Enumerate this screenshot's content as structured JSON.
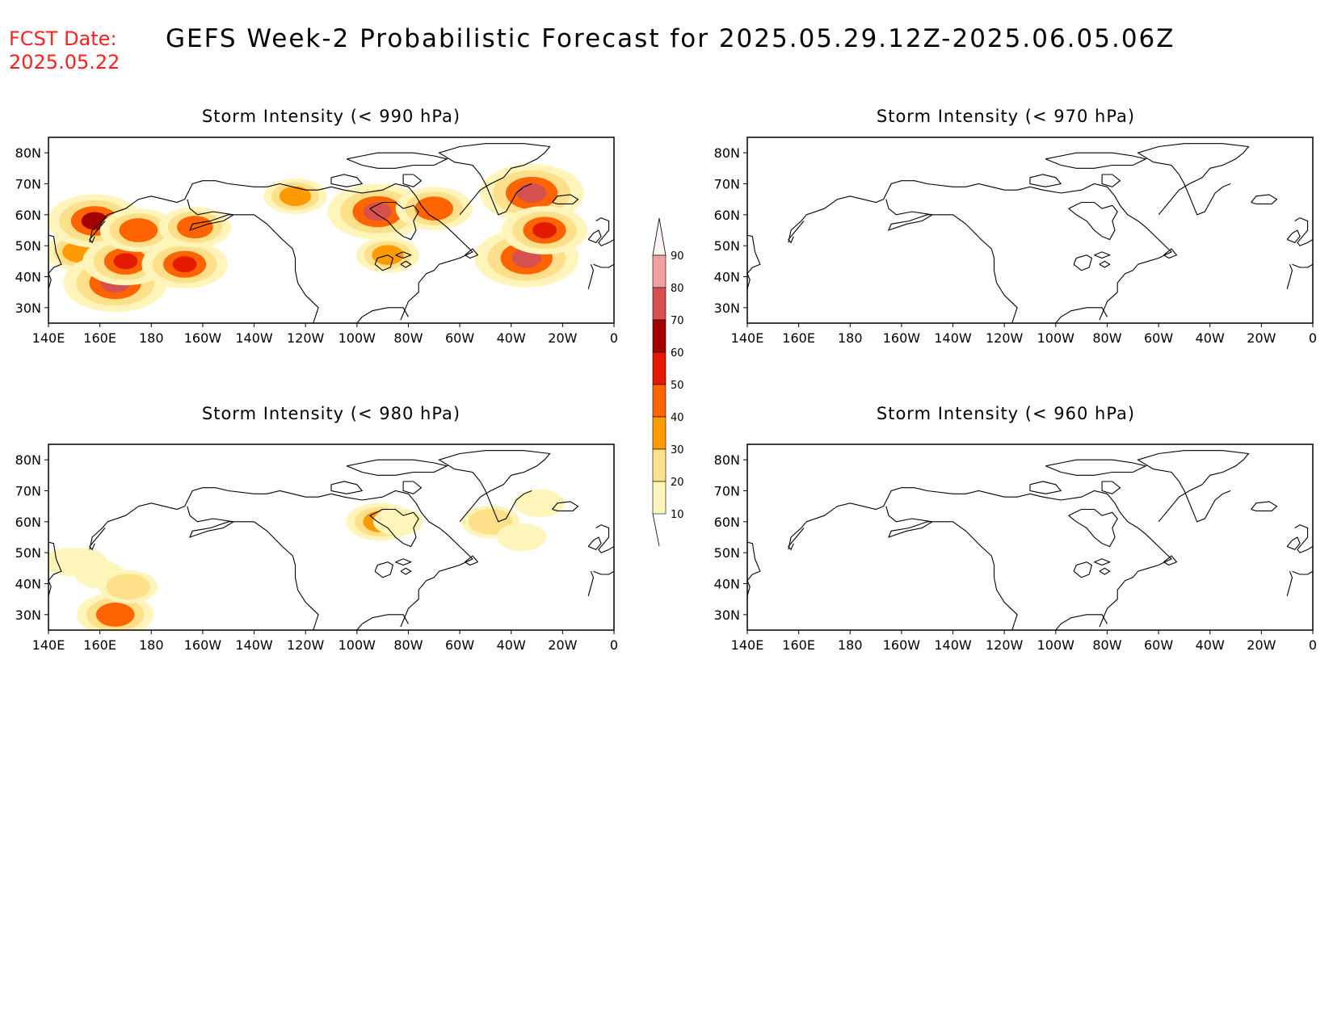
{
  "header": {
    "fcst_label": "FCST Date:",
    "fcst_date": "2025.05.22",
    "title": "GEFS Week-2 Probabilistic Forecast for 2025.05.29.12Z-2025.06.05.06Z"
  },
  "axes": {
    "x_ticks": [
      "140E",
      "160E",
      "180",
      "160W",
      "140W",
      "120W",
      "100W",
      "80W",
      "60W",
      "40W",
      "20W",
      "0"
    ],
    "y_ticks": [
      "80N",
      "70N",
      "60N",
      "50N",
      "40N",
      "30N"
    ],
    "lon_range_deg_east": [
      140,
      360
    ],
    "lat_range": [
      25,
      85
    ]
  },
  "chart_data": [
    {
      "type": "heatmap",
      "panel": "top-left",
      "title": "Storm Intensity (< 990 hPa)",
      "units": "probability (%)",
      "regions": [
        {
          "lon": 152,
          "lat": 48,
          "prob": 35
        },
        {
          "lon": 158,
          "lat": 58,
          "prob": 65
        },
        {
          "lon": 166,
          "lat": 38,
          "prob": 75
        },
        {
          "lon": 170,
          "lat": 45,
          "prob": 55
        },
        {
          "lon": 175,
          "lat": 55,
          "prob": 45
        },
        {
          "lon": 193,
          "lat": 44,
          "prob": 55
        },
        {
          "lon": 197,
          "lat": 56,
          "prob": 40
        },
        {
          "lon": 236,
          "lat": 66,
          "prob": 30
        },
        {
          "lon": 268,
          "lat": 61,
          "prob": 70
        },
        {
          "lon": 272,
          "lat": 47,
          "prob": 30
        },
        {
          "lon": 290,
          "lat": 62,
          "prob": 45
        },
        {
          "lon": 326,
          "lat": 46,
          "prob": 75
        },
        {
          "lon": 328,
          "lat": 67,
          "prob": 75
        },
        {
          "lon": 333,
          "lat": 55,
          "prob": 55
        }
      ]
    },
    {
      "type": "heatmap",
      "panel": "top-right",
      "title": "Storm Intensity (< 970 hPa)",
      "units": "probability (%)",
      "regions": []
    },
    {
      "type": "heatmap",
      "panel": "bottom-left",
      "title": "Storm Intensity (< 980 hPa)",
      "units": "probability (%)",
      "regions": [
        {
          "lon": 148,
          "lat": 47,
          "prob": 15
        },
        {
          "lon": 153,
          "lat": 47,
          "prob": 15
        },
        {
          "lon": 160,
          "lat": 43,
          "prob": 15
        },
        {
          "lon": 166,
          "lat": 30,
          "prob": 45
        },
        {
          "lon": 171,
          "lat": 39,
          "prob": 25
        },
        {
          "lon": 269,
          "lat": 60,
          "prob": 35
        },
        {
          "lon": 276,
          "lat": 60,
          "prob": 15
        },
        {
          "lon": 312,
          "lat": 60,
          "prob": 25
        },
        {
          "lon": 324,
          "lat": 55,
          "prob": 15
        },
        {
          "lon": 331,
          "lat": 66,
          "prob": 15
        }
      ]
    },
    {
      "type": "heatmap",
      "panel": "bottom-right",
      "title": "Storm Intensity (< 960 hPa)",
      "units": "probability (%)",
      "regions": []
    }
  ],
  "colorbar": {
    "labels": [
      "90",
      "80",
      "70",
      "60",
      "50",
      "40",
      "30",
      "20",
      "10"
    ],
    "bins": [
      {
        "from": 10,
        "to": 20,
        "color": "#fff5bb"
      },
      {
        "from": 20,
        "to": 30,
        "color": "#ffe08a"
      },
      {
        "from": 30,
        "to": 40,
        "color": "#ff9a00"
      },
      {
        "from": 40,
        "to": 50,
        "color": "#ff6400"
      },
      {
        "from": 50,
        "to": 60,
        "color": "#e31a00"
      },
      {
        "from": 60,
        "to": 70,
        "color": "#a50000"
      },
      {
        "from": 70,
        "to": 80,
        "color": "#d75050"
      },
      {
        "from": 80,
        "to": 90,
        "color": "#f0a0a0"
      },
      {
        "from": 90,
        "to": 100,
        "color": "#ffe0e0"
      }
    ]
  }
}
